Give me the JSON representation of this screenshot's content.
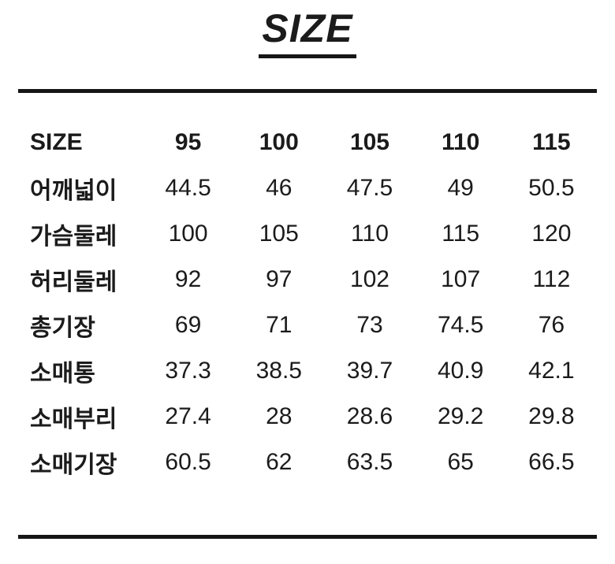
{
  "page": {
    "title": "SIZE"
  },
  "colors": {
    "text": "#1b1b1b",
    "rule": "#161616",
    "background": "#ffffff"
  },
  "chart_data": {
    "type": "table",
    "title": "SIZE",
    "columns": [
      "SIZE",
      "95",
      "100",
      "105",
      "110",
      "115"
    ],
    "rows": [
      {
        "label": "어깨넓이",
        "values": [
          "44.5",
          "46",
          "47.5",
          "49",
          "50.5"
        ]
      },
      {
        "label": "가슴둘레",
        "values": [
          "100",
          "105",
          "110",
          "115",
          "120"
        ]
      },
      {
        "label": "허리둘레",
        "values": [
          "92",
          "97",
          "102",
          "107",
          "112"
        ]
      },
      {
        "label": "총기장",
        "values": [
          "69",
          "71",
          "73",
          "74.5",
          "76"
        ]
      },
      {
        "label": "소매통",
        "values": [
          "37.3",
          "38.5",
          "39.7",
          "40.9",
          "42.1"
        ]
      },
      {
        "label": "소매부리",
        "values": [
          "27.4",
          "28",
          "28.6",
          "29.2",
          "29.8"
        ]
      },
      {
        "label": "소매기장",
        "values": [
          "60.5",
          "62",
          "63.5",
          "65",
          "66.5"
        ]
      }
    ]
  }
}
